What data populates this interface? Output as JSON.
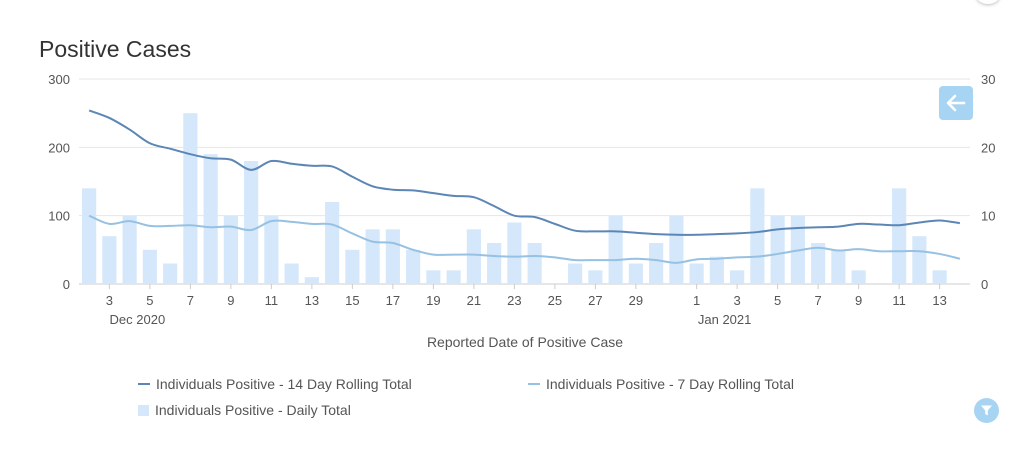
{
  "title": "Positive Cases",
  "buttons": {
    "back_icon": "left-arrow-icon",
    "filter_icon": "funnel-icon"
  },
  "colors": {
    "daily_bar": "#d5e8fb",
    "line_14": "#5b86b5",
    "line_7": "#96c1e2",
    "grid": "#e6e6e6",
    "button": "#a8d4f3"
  },
  "chart_data": {
    "type": "bar",
    "xlabel": "Reported Date of Positive Case",
    "dates": [
      "2020-12-02",
      "2020-12-03",
      "2020-12-04",
      "2020-12-05",
      "2020-12-06",
      "2020-12-07",
      "2020-12-08",
      "2020-12-09",
      "2020-12-10",
      "2020-12-11",
      "2020-12-12",
      "2020-12-13",
      "2020-12-14",
      "2020-12-15",
      "2020-12-16",
      "2020-12-17",
      "2020-12-18",
      "2020-12-19",
      "2020-12-20",
      "2020-12-21",
      "2020-12-22",
      "2020-12-23",
      "2020-12-24",
      "2020-12-25",
      "2020-12-26",
      "2020-12-27",
      "2020-12-28",
      "2020-12-29",
      "2020-12-30",
      "2020-12-31",
      "2021-01-01",
      "2021-01-02",
      "2021-01-03",
      "2021-01-04",
      "2021-01-05",
      "2021-01-06",
      "2021-01-07",
      "2021-01-08",
      "2021-01-09",
      "2021-01-10",
      "2021-01-11",
      "2021-01-12",
      "2021-01-13",
      "2021-01-14"
    ],
    "x_tick_labels": [
      {
        "date": "2020-12-03",
        "label": "3"
      },
      {
        "date": "2020-12-05",
        "label": "5"
      },
      {
        "date": "2020-12-07",
        "label": "7"
      },
      {
        "date": "2020-12-09",
        "label": "9"
      },
      {
        "date": "2020-12-11",
        "label": "11"
      },
      {
        "date": "2020-12-13",
        "label": "13"
      },
      {
        "date": "2020-12-15",
        "label": "15"
      },
      {
        "date": "2020-12-17",
        "label": "17"
      },
      {
        "date": "2020-12-19",
        "label": "19"
      },
      {
        "date": "2020-12-21",
        "label": "21"
      },
      {
        "date": "2020-12-23",
        "label": "23"
      },
      {
        "date": "2020-12-25",
        "label": "25"
      },
      {
        "date": "2020-12-27",
        "label": "27"
      },
      {
        "date": "2020-12-29",
        "label": "29"
      },
      {
        "date": "2021-01-01",
        "label": "1"
      },
      {
        "date": "2021-01-03",
        "label": "3"
      },
      {
        "date": "2021-01-05",
        "label": "5"
      },
      {
        "date": "2021-01-07",
        "label": "7"
      },
      {
        "date": "2021-01-09",
        "label": "9"
      },
      {
        "date": "2021-01-11",
        "label": "11"
      },
      {
        "date": "2021-01-13",
        "label": "13"
      }
    ],
    "x_month_labels": [
      {
        "date": "2020-12-03",
        "label": "Dec 2020"
      },
      {
        "date": "2021-01-01",
        "label": "Jan 2021"
      }
    ],
    "y_left": {
      "range": [
        0,
        300
      ],
      "ticks": [
        0,
        100,
        200,
        300
      ]
    },
    "y_right": {
      "range": [
        0,
        30
      ],
      "ticks": [
        0,
        10,
        20,
        30
      ]
    },
    "grid": true,
    "legend_position": "bottom",
    "series": [
      {
        "name": "Individuals Positive - 14 Day Rolling Total",
        "type": "line",
        "axis": "left",
        "values": [
          254,
          243,
          226,
          206,
          198,
          190,
          184,
          182,
          167,
          180,
          176,
          173,
          172,
          157,
          143,
          138,
          137,
          133,
          129,
          127,
          114,
          100,
          98,
          88,
          78,
          77,
          77,
          75,
          73,
          72,
          72,
          73,
          74,
          76,
          80,
          82,
          83,
          84,
          88,
          87,
          86,
          90,
          93,
          89
        ]
      },
      {
        "name": "Individuals Positive - 7 Day Rolling Total",
        "type": "line",
        "axis": "left",
        "values": [
          100,
          88,
          92,
          85,
          85,
          86,
          83,
          84,
          79,
          92,
          91,
          88,
          87,
          74,
          62,
          60,
          50,
          43,
          43,
          43,
          41,
          40,
          41,
          39,
          35,
          35,
          35,
          37,
          35,
          31,
          36,
          37,
          39,
          40,
          44,
          49,
          53,
          49,
          51,
          48,
          48,
          48,
          44,
          37
        ]
      },
      {
        "name": "Individuals Positive - Daily Total",
        "type": "bar",
        "axis": "right",
        "values": [
          14,
          7,
          10,
          5,
          3,
          25,
          19,
          10,
          18,
          10,
          3,
          1,
          12,
          5,
          8,
          8,
          5,
          2,
          2,
          8,
          6,
          9,
          6,
          0,
          3,
          2,
          10,
          3,
          6,
          10,
          3,
          4,
          2,
          14,
          10,
          10,
          6,
          5,
          2,
          0,
          14,
          7,
          2,
          0
        ]
      }
    ]
  }
}
